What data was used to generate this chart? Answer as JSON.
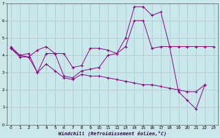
{
  "xlabel": "Windchill (Refroidissement éolien,°C)",
  "background_color": "#cae8ea",
  "line_color": "#880088",
  "grid_color": "#aabbcc",
  "xlim": [
    -0.5,
    23.5
  ],
  "ylim": [
    0,
    7
  ],
  "xticks": [
    0,
    1,
    2,
    3,
    4,
    5,
    6,
    7,
    8,
    9,
    10,
    11,
    12,
    13,
    14,
    15,
    16,
    17,
    18,
    19,
    20,
    21,
    22,
    23
  ],
  "yticks": [
    0,
    1,
    2,
    3,
    4,
    5,
    6,
    7
  ],
  "line1_x": [
    0,
    1,
    2,
    3,
    4,
    5,
    6,
    7,
    8,
    9,
    10,
    11,
    12,
    13,
    14,
    15,
    16,
    17,
    18,
    19,
    20,
    21,
    22,
    23
  ],
  "line1_y": [
    4.5,
    4.0,
    3.9,
    4.3,
    4.5,
    4.1,
    4.1,
    3.3,
    3.4,
    4.4,
    4.4,
    4.3,
    4.1,
    4.5,
    6.0,
    6.0,
    4.4,
    4.5,
    4.5,
    4.5,
    4.5,
    4.5,
    4.5,
    4.5
  ],
  "line2_x": [
    0,
    1,
    2,
    3,
    4,
    5,
    6,
    7,
    8,
    9,
    10,
    11,
    12,
    13,
    14,
    15,
    16,
    17,
    18,
    19,
    20,
    21,
    22,
    23
  ],
  "line2_y": [
    4.4,
    3.9,
    3.9,
    3.0,
    4.1,
    4.1,
    2.8,
    2.7,
    3.1,
    3.2,
    3.3,
    4.0,
    4.1,
    5.0,
    6.8,
    6.8,
    6.3,
    6.5,
    4.5,
    1.9,
    1.4,
    0.9,
    2.3,
    null
  ],
  "line3_x": [
    0,
    1,
    2,
    3,
    4,
    5,
    6,
    7,
    8,
    9,
    10,
    11,
    12,
    13,
    14,
    15,
    16,
    17,
    18,
    19,
    20,
    21,
    22,
    23
  ],
  "line3_y": [
    4.4,
    4.0,
    4.1,
    3.0,
    3.5,
    3.1,
    2.7,
    2.6,
    2.9,
    2.8,
    2.8,
    2.7,
    2.6,
    2.5,
    2.4,
    2.3,
    2.3,
    2.2,
    2.1,
    2.0,
    1.9,
    1.9,
    2.3,
    null
  ]
}
